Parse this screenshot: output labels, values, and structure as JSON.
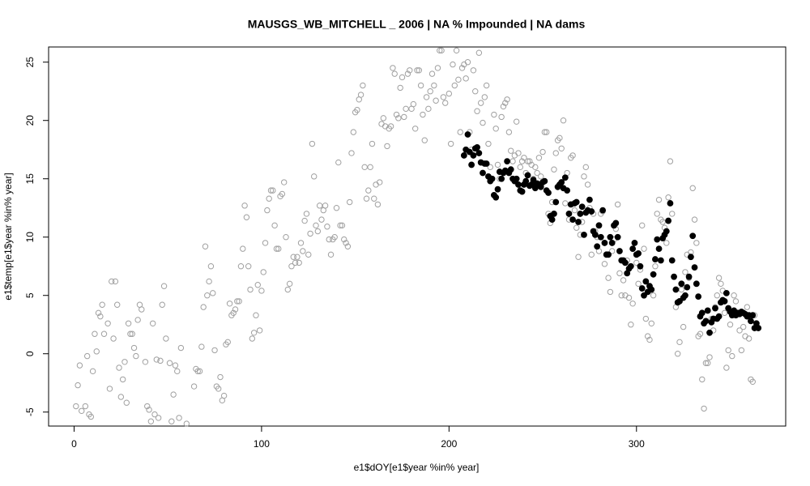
{
  "chart_data": {
    "type": "scatter",
    "title": "MAUSGS_WB_MITCHELL _ 2006   |   NA  % Impounded |  NA  dams",
    "x_label": "e1$dOY[e1$year %in% year]",
    "y_label": "e1$temp[e1$year %in% year]",
    "xlim": [
      -13.6,
      379.6
    ],
    "ylim": [
      -6.2,
      26.3
    ],
    "xticks": [
      0,
      100,
      200,
      300
    ],
    "yticks": [
      -5,
      0,
      5,
      10,
      15,
      20,
      25
    ],
    "grid": false,
    "series": [
      {
        "color": "#a0a0a0",
        "filled": false,
        "x": [
          1,
          2,
          3,
          4,
          6,
          7,
          8,
          9,
          10,
          11,
          12,
          13,
          14,
          15,
          16,
          18,
          19,
          20,
          21,
          22,
          23,
          24,
          25,
          26,
          27,
          28,
          29,
          30,
          31,
          32,
          33,
          34,
          35,
          36,
          38,
          39,
          40,
          41,
          42,
          43,
          44,
          45,
          46,
          47,
          48,
          49,
          51,
          52,
          53,
          54,
          55,
          56,
          57,
          60,
          64,
          65,
          66,
          67,
          68,
          69,
          70,
          71,
          72,
          73,
          74,
          75,
          76,
          77,
          78,
          79,
          80,
          81,
          82,
          83,
          84,
          85,
          86,
          87,
          88,
          89,
          90,
          91,
          92,
          93,
          94,
          95,
          96,
          97,
          98,
          99,
          100,
          101,
          102,
          103,
          104,
          105,
          106,
          107,
          108,
          109,
          110,
          111,
          112,
          113,
          114,
          115,
          116,
          117,
          118,
          119,
          120,
          121,
          122,
          123,
          124,
          125,
          126,
          127,
          128,
          129,
          130,
          131,
          132,
          133,
          134,
          135,
          136,
          137,
          138,
          139,
          140,
          141,
          142,
          143,
          144,
          145,
          146,
          147,
          148,
          149,
          150,
          151,
          152,
          153,
          154,
          155,
          156,
          157,
          158,
          159,
          160,
          161,
          162,
          163,
          164,
          165,
          166,
          167,
          168,
          169,
          170,
          171,
          172,
          173,
          174,
          175,
          176,
          177,
          178,
          179,
          180,
          181,
          182,
          183,
          184,
          185,
          186,
          187,
          188,
          189,
          190,
          191,
          192,
          193,
          194,
          195,
          196,
          197,
          198,
          200,
          201,
          202,
          203,
          204,
          205,
          206,
          207,
          208,
          209,
          210,
          211,
          212,
          213,
          214,
          215,
          216,
          217,
          218,
          219,
          220,
          221,
          222,
          223,
          224,
          225,
          226,
          227,
          228,
          229,
          230,
          231,
          232,
          233,
          234,
          235,
          236,
          237,
          238,
          239,
          240,
          241,
          242,
          243,
          244,
          245,
          246,
          247,
          248,
          249,
          250,
          251,
          252,
          253,
          254,
          255,
          256,
          257,
          258,
          259,
          260,
          261,
          262,
          263,
          264,
          265,
          266,
          267,
          268,
          269,
          270,
          271,
          272,
          273,
          274,
          275,
          276,
          277,
          278,
          279,
          280,
          281,
          282,
          283,
          284,
          285,
          286,
          287,
          288,
          289,
          290,
          291,
          292,
          293,
          294,
          295,
          296,
          297,
          298,
          299,
          300,
          301,
          302,
          303,
          304,
          305,
          306,
          307,
          308,
          309,
          310,
          311,
          312,
          313,
          314,
          315,
          316,
          317,
          318,
          319,
          320,
          321,
          322,
          323,
          324,
          325,
          326,
          327,
          328,
          329,
          330,
          331,
          332,
          333,
          334,
          335,
          336,
          337,
          338,
          339,
          340,
          341,
          342,
          343,
          344,
          345,
          346,
          347,
          348,
          349,
          350,
          351,
          352,
          353,
          354,
          355,
          356,
          357,
          358,
          359,
          360,
          361,
          362,
          363
        ],
        "values": [
          -4.5,
          -2.7,
          -1.0,
          -4.9,
          -4.5,
          -0.2,
          -5.2,
          -5.4,
          -1.5,
          1.7,
          0.2,
          3.5,
          3.2,
          4.2,
          1.7,
          2.6,
          -3.0,
          6.2,
          1.3,
          6.2,
          4.2,
          -1.2,
          -3.7,
          -2.2,
          -0.7,
          -4.2,
          2.6,
          1.7,
          1.7,
          0.5,
          -0.2,
          2.9,
          4.2,
          3.8,
          -0.7,
          -4.5,
          -4.8,
          -5.8,
          2.6,
          -5.2,
          -0.5,
          -5.5,
          -0.6,
          4.2,
          5.8,
          1.3,
          -0.8,
          -5.8,
          -3.5,
          -1.0,
          -1.5,
          -5.5,
          0.5,
          -6.0,
          -2.8,
          -1.3,
          -1.5,
          -1.5,
          0.6,
          4.0,
          9.2,
          5.0,
          6.2,
          7.5,
          5.2,
          0.3,
          -2.8,
          -3.0,
          -2.0,
          -4.0,
          -3.6,
          0.8,
          1.0,
          4.3,
          3.3,
          3.5,
          3.8,
          4.5,
          4.5,
          7.5,
          9.0,
          12.7,
          11.7,
          7.5,
          5.5,
          1.3,
          1.8,
          3.3,
          5.9,
          2.0,
          5.4,
          7.0,
          9.5,
          12.3,
          13.3,
          14.0,
          14.0,
          11.0,
          9.0,
          9.0,
          13.5,
          13.7,
          14.7,
          10.0,
          5.5,
          6.0,
          7.5,
          8.3,
          7.8,
          8.3,
          7.8,
          9.5,
          8.8,
          11.4,
          12.0,
          8.5,
          10.3,
          18.0,
          15.2,
          11.0,
          10.5,
          12.7,
          11.5,
          12.3,
          12.7,
          10.9,
          9.8,
          8.5,
          9.8,
          10.0,
          12.5,
          16.4,
          11.0,
          11.0,
          9.8,
          9.5,
          9.2,
          13.0,
          17.2,
          19.0,
          20.7,
          20.9,
          21.8,
          22.2,
          23.0,
          16.0,
          13.3,
          14.0,
          16.0,
          18.0,
          13.3,
          14.5,
          12.8,
          14.7,
          19.7,
          20.2,
          19.5,
          17.8,
          19.3,
          19.5,
          24.5,
          24.0,
          20.5,
          20.2,
          22.8,
          23.7,
          20.3,
          21.0,
          24.0,
          24.3,
          21.0,
          21.4,
          19.3,
          24.3,
          24.3,
          23.0,
          20.5,
          18.3,
          22.0,
          21.0,
          22.5,
          24.0,
          23.0,
          21.7,
          24.5,
          26.0,
          26.0,
          22.0,
          21.5,
          22.3,
          18.0,
          24.8,
          23.0,
          26.0,
          23.5,
          19.0,
          24.5,
          24.8,
          23.6,
          25.0,
          19.0,
          17.5,
          24.3,
          22.5,
          20.8,
          25.8,
          21.5,
          19.8,
          22.0,
          23.0,
          18.0,
          16.0,
          15.0,
          20.5,
          19.3,
          16.2,
          15.0,
          20.3,
          21.2,
          21.5,
          21.8,
          19.0,
          17.4,
          16.5,
          17.0,
          19.9,
          17.2,
          16.0,
          16.5,
          16.8,
          15.5,
          16.5,
          16.5,
          16.2,
          15.0,
          16.0,
          15.5,
          16.8,
          15.2,
          17.3,
          19.0,
          19.0,
          12.0,
          11.2,
          13.0,
          15.8,
          17.2,
          18.3,
          18.5,
          17.6,
          20.0,
          12.9,
          15.5,
          11.5,
          16.8,
          17.0,
          12.3,
          10.8,
          8.3,
          10.2,
          11.3,
          15.2,
          16.0,
          14.5,
          12.5,
          8.5,
          12.0,
          10.5,
          10.0,
          8.8,
          12.0,
          12.2,
          7.7,
          8.5,
          6.5,
          5.3,
          8.8,
          9.8,
          10.7,
          12.8,
          6.9,
          5.0,
          6.3,
          5.0,
          8.0,
          4.8,
          2.5,
          4.3,
          9.5,
          7.8,
          6.0,
          7.2,
          11.0,
          9.0,
          3.0,
          1.5,
          1.2,
          2.6,
          5.0,
          7.5,
          12.0,
          13.2,
          11.5,
          11.3,
          10.8,
          9.5,
          13.4,
          16.5,
          12.0,
          6.6,
          4.0,
          0.0,
          1.0,
          5.5,
          2.3,
          7.0,
          8.5,
          6.5,
          8.7,
          14.2,
          11.5,
          9.5,
          1.5,
          1.7,
          -2.2,
          -4.7,
          -0.8,
          -0.8,
          -0.3,
          3.0,
          2.0,
          4.0,
          5.0,
          6.5,
          6.0,
          5.4,
          3.5,
          -1.2,
          0.3,
          2.5,
          -0.2,
          5.0,
          4.5,
          3.5,
          2.0,
          0.3,
          2.3,
          1.5,
          4.0,
          1.3,
          -2.2,
          -2.4,
          3.3
        ]
      },
      {
        "color": "#000000",
        "filled": true,
        "x": [
          208,
          209,
          210,
          211,
          212,
          213,
          214,
          215,
          216,
          217,
          218,
          219,
          220,
          221,
          222,
          223,
          224,
          225,
          226,
          227,
          228,
          229,
          230,
          231,
          232,
          233,
          234,
          235,
          236,
          237,
          238,
          239,
          240,
          241,
          242,
          243,
          244,
          245,
          246,
          247,
          248,
          249,
          250,
          251,
          252,
          253,
          254,
          255,
          256,
          257,
          258,
          259,
          260,
          261,
          262,
          263,
          264,
          265,
          266,
          267,
          268,
          269,
          270,
          271,
          272,
          273,
          274,
          275,
          276,
          277,
          278,
          279,
          280,
          281,
          282,
          283,
          284,
          285,
          286,
          287,
          288,
          289,
          290,
          291,
          292,
          293,
          294,
          295,
          296,
          297,
          298,
          299,
          300,
          301,
          302,
          303,
          304,
          305,
          306,
          307,
          308,
          309,
          310,
          311,
          312,
          313,
          314,
          315,
          316,
          317,
          318,
          319,
          320,
          321,
          322,
          323,
          324,
          325,
          326,
          327,
          328,
          329,
          330,
          331,
          332,
          333,
          334,
          335,
          336,
          337,
          338,
          339,
          340,
          341,
          342,
          343,
          344,
          345,
          346,
          347,
          348,
          349,
          350,
          351,
          352,
          353,
          354,
          355,
          356,
          357,
          358,
          359,
          360,
          361,
          362,
          363,
          364,
          365
        ],
        "values": [
          17.0,
          17.5,
          18.8,
          17.3,
          16.2,
          17.0,
          17.6,
          17.7,
          17.2,
          16.4,
          15.5,
          16.3,
          16.3,
          15.2,
          14.8,
          15.0,
          13.6,
          13.4,
          14.1,
          15.6,
          15.0,
          15.5,
          15.7,
          16.5,
          15.5,
          15.8,
          15.0,
          14.8,
          15.0,
          14.5,
          14.0,
          13.9,
          14.5,
          14.8,
          15.3,
          14.4,
          14.5,
          14.9,
          14.2,
          14.6,
          14.5,
          14.3,
          14.7,
          14.8,
          14.0,
          13.8,
          11.8,
          11.5,
          12.0,
          13.0,
          14.3,
          14.5,
          14.7,
          14.2,
          15.1,
          14.0,
          12.0,
          12.8,
          11.5,
          12.9,
          13.0,
          11.3,
          12.0,
          12.6,
          10.2,
          12.1,
          12.3,
          13.2,
          12.2,
          10.5,
          10.2,
          9.2,
          11.0,
          10.0,
          12.3,
          9.5,
          8.5,
          8.5,
          10.0,
          9.5,
          11.0,
          11.2,
          10.0,
          8.8,
          8.0,
          8.0,
          7.8,
          6.9,
          7.3,
          7.5,
          9.0,
          9.5,
          8.5,
          8.6,
          7.5,
          5.6,
          5.0,
          6.2,
          5.3,
          5.8,
          5.5,
          6.8,
          8.1,
          9.8,
          9.0,
          8.0,
          9.9,
          10.2,
          10.5,
          11.4,
          12.9,
          8.0,
          6.6,
          5.5,
          4.4,
          4.5,
          6.0,
          4.8,
          5.0,
          5.7,
          6.6,
          8.3,
          10.1,
          7.4,
          6.0,
          4.9,
          3.2,
          3.5,
          2.6,
          2.8,
          3.7,
          1.8,
          2.7,
          3.0,
          3.9,
          3.0,
          3.2,
          4.4,
          4.6,
          4.5,
          5.2,
          3.9,
          3.6,
          3.3,
          3.7,
          3.3,
          3.5,
          3.4,
          3.6,
          3.5,
          3.4,
          3.2,
          3.3,
          2.8,
          3.3,
          2.2,
          2.6,
          2.2
        ]
      }
    ]
  }
}
